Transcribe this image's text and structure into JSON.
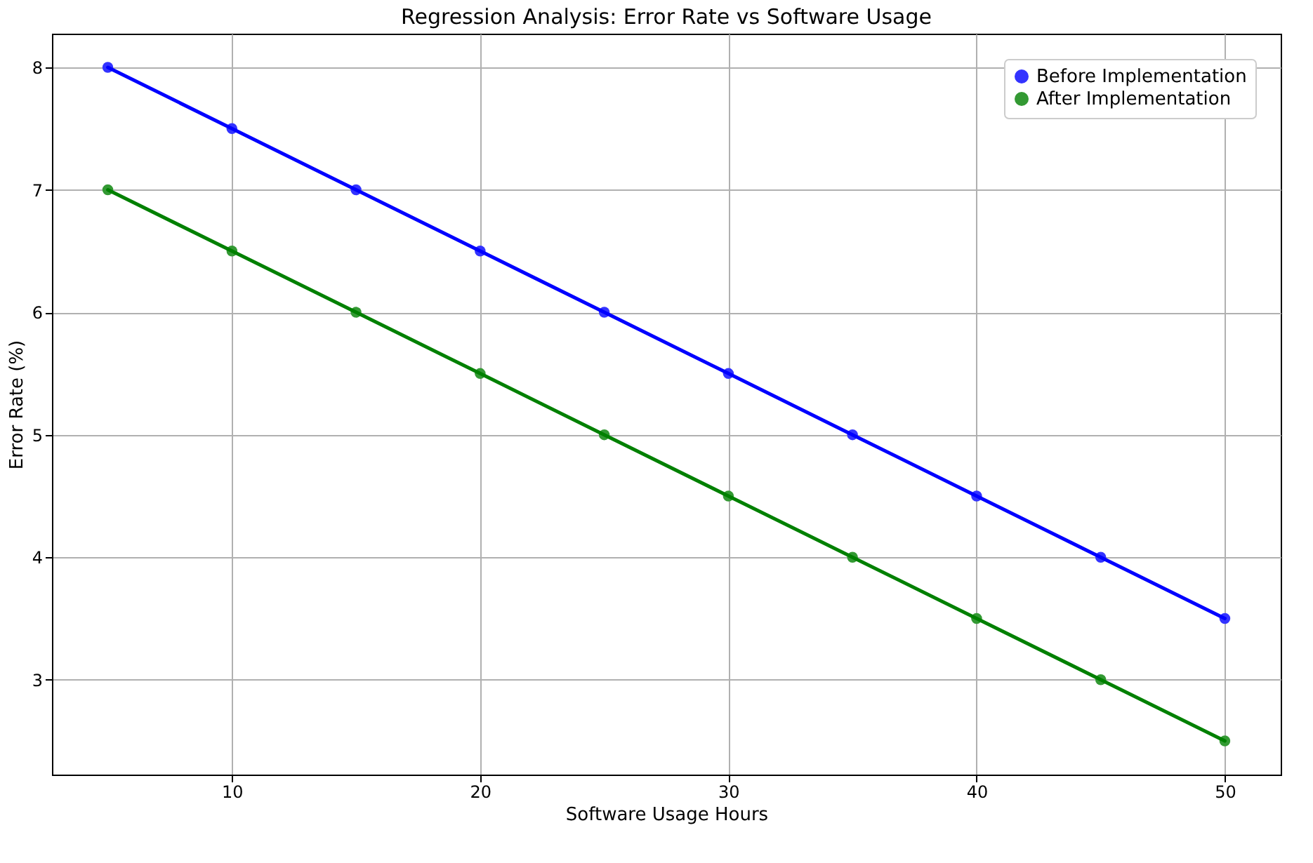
{
  "chart_data": {
    "type": "scatter",
    "title": "Regression Analysis: Error Rate vs Software Usage",
    "xlabel": "Software Usage Hours",
    "ylabel": "Error Rate (%)",
    "x": [
      5,
      10,
      15,
      20,
      25,
      30,
      35,
      40,
      45,
      50
    ],
    "series": [
      {
        "name": "Before Implementation",
        "color": "#3333ff",
        "values": [
          8,
          7.5,
          7,
          6.5,
          6,
          5.5,
          5,
          4.5,
          4,
          3.5
        ]
      },
      {
        "name": "After Implementation",
        "color": "#339933",
        "values": [
          7,
          6.5,
          6,
          5.5,
          5,
          4.5,
          4,
          3.5,
          3,
          2.5
        ]
      },
      {
        "type": "line",
        "color": "#0000ff",
        "marker": "none",
        "values": [
          8,
          7.5,
          7,
          6.5,
          6,
          5.5,
          5,
          4.5,
          4,
          3.5
        ]
      },
      {
        "type": "line",
        "color": "#008000",
        "marker": "none",
        "values": [
          7,
          6.5,
          6,
          5.5,
          5,
          4.5,
          4,
          3.5,
          3,
          2.5
        ]
      }
    ],
    "xlim": [
      2.75,
      52.25
    ],
    "xticks": [
      10,
      20,
      30,
      40,
      50
    ],
    "ylim": [
      2.225,
      8.275
    ],
    "yticks": [
      3,
      4,
      5,
      6,
      7,
      8
    ],
    "grid": true,
    "legend": "top right",
    "marker": "circle"
  }
}
